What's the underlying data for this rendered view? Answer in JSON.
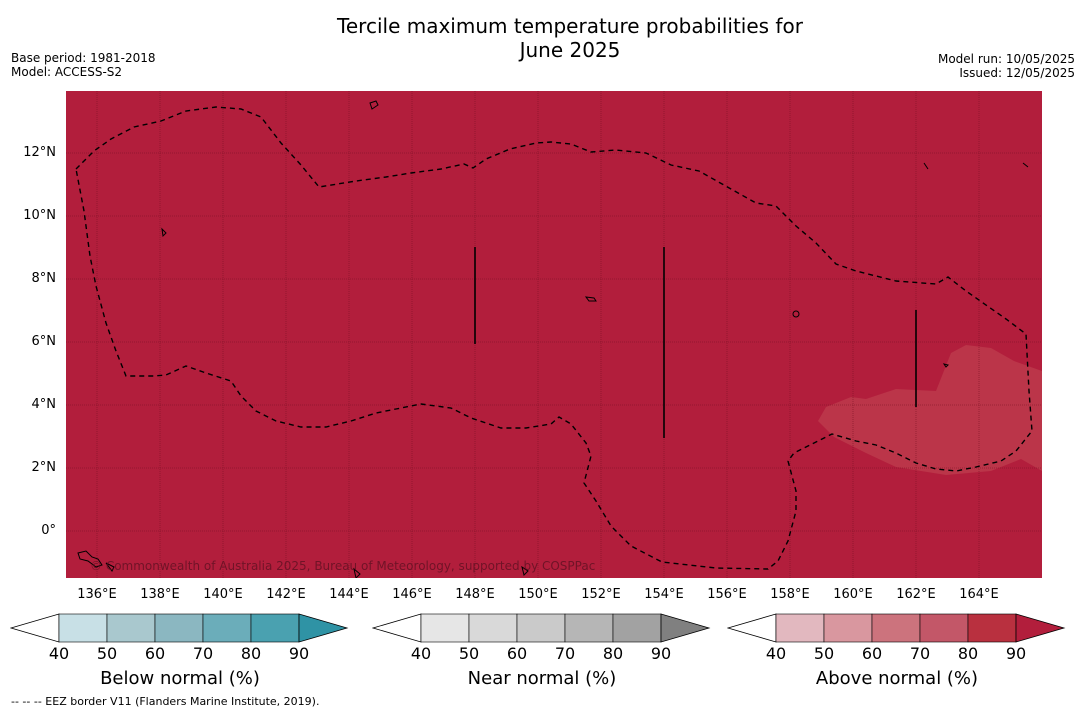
{
  "title_line1": "Tercile maximum temperature probabilities for",
  "title_line2": "June 2025",
  "base_period": "Base period: 1981-2018",
  "model": "Model: ACCESS-S2",
  "model_run": "Model run: 10/05/2025",
  "issued": "Issued: 12/05/2025",
  "credit": "© Commonwealth of Australia 2025, Bureau of Meteorology, supported by COSPPac",
  "footer": "--  --  -- EEZ border V11 (Flanders Marine Institute, 2019).",
  "map": {
    "lat_ticks": [
      "12°N",
      "10°N",
      "8°N",
      "6°N",
      "4°N",
      "2°N",
      "0°"
    ],
    "lon_ticks": [
      "136°E",
      "138°E",
      "140°E",
      "142°E",
      "144°E",
      "146°E",
      "148°E",
      "150°E",
      "152°E",
      "154°E",
      "156°E",
      "158°E",
      "160°E",
      "162°E",
      "164°E"
    ],
    "lat_range": [
      -1.5,
      13.9
    ],
    "lon_range": [
      134.95,
      165.95
    ],
    "dominant_category": "Above normal",
    "dominant_level": "80-90",
    "secondary_level": "70-80"
  },
  "colorbars": [
    {
      "label": "Below normal (%)",
      "ticks": [
        "40",
        "50",
        "60",
        "70",
        "80",
        "90"
      ],
      "colors": [
        "#ffffff",
        "#c8e0e6",
        "#a9c8ce",
        "#8bb7c1",
        "#6badba",
        "#4aa1b0",
        "#2f93a5"
      ]
    },
    {
      "label": "Near normal (%)",
      "ticks": [
        "40",
        "50",
        "60",
        "70",
        "80",
        "90"
      ],
      "colors": [
        "#ffffff",
        "#e6e6e6",
        "#d9d9d9",
        "#cacaca",
        "#b6b6b6",
        "#a2a2a2",
        "#808080"
      ]
    },
    {
      "label": "Above normal (%)",
      "ticks": [
        "40",
        "50",
        "60",
        "70",
        "80",
        "90"
      ],
      "colors": [
        "#ffffff",
        "#e2b8bf",
        "#d9979f",
        "#cc737d",
        "#c35768",
        "#b9303f",
        "#b21e3c"
      ]
    }
  ]
}
